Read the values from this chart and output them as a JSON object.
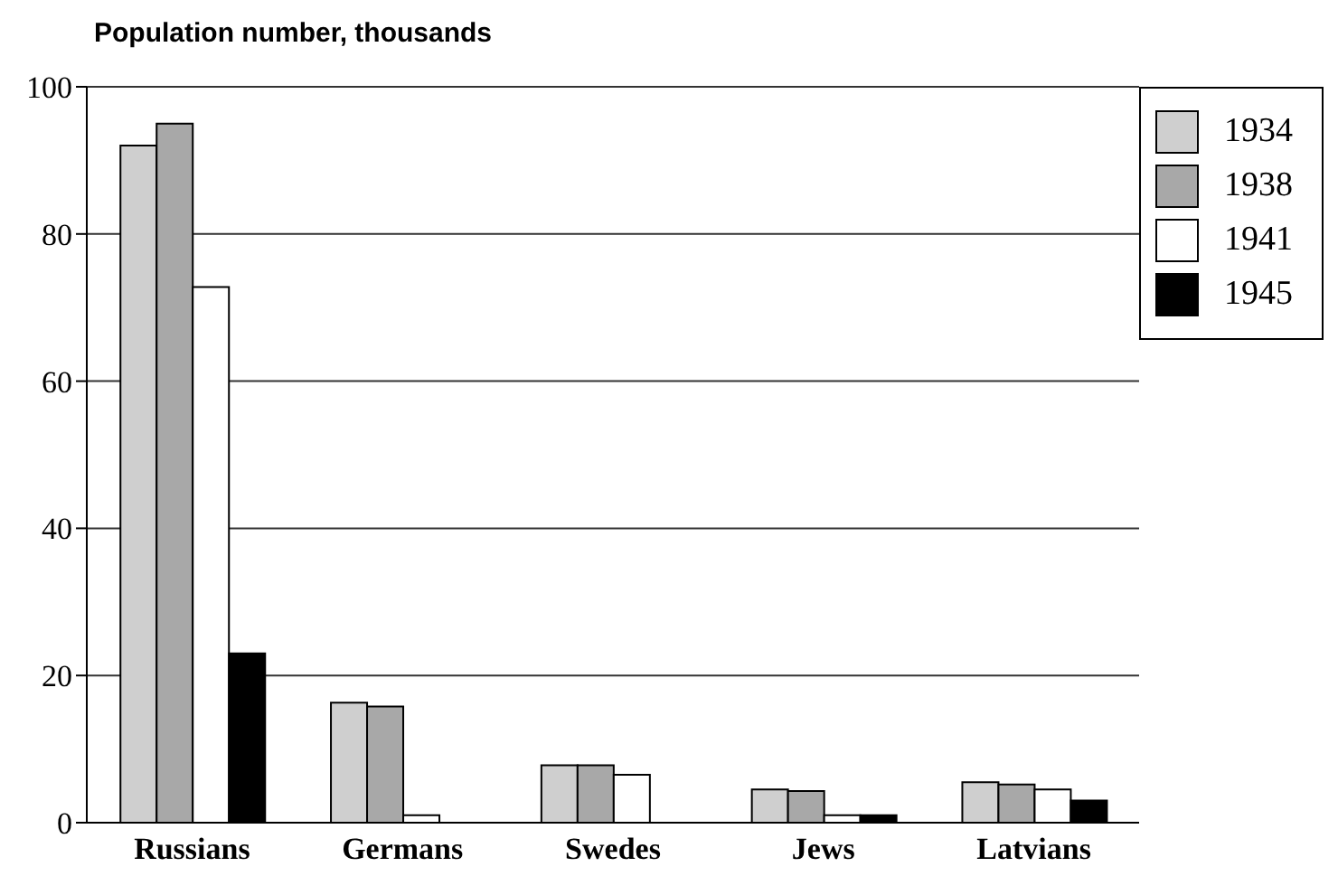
{
  "chart_data": {
    "type": "bar",
    "title": "Population number, thousands",
    "categories": [
      "Russians",
      "Germans",
      "Swedes",
      "Jews",
      "Latvians"
    ],
    "series": [
      {
        "name": "1934",
        "color": "#cfcfcf",
        "values": [
          92,
          16.3,
          7.8,
          4.5,
          5.5
        ]
      },
      {
        "name": "1938",
        "color": "#a8a8a8",
        "values": [
          95,
          15.8,
          7.8,
          4.3,
          5.2
        ]
      },
      {
        "name": "1941",
        "color": "#ffffff",
        "values": [
          72.8,
          1,
          6.5,
          1,
          4.5
        ]
      },
      {
        "name": "1945",
        "color": "#000000",
        "values": [
          23,
          null,
          null,
          1,
          3
        ]
      }
    ],
    "ylim": [
      0,
      100
    ],
    "yticks": [
      0,
      20,
      40,
      60,
      80,
      100
    ],
    "grid": "y",
    "legend": "top right"
  }
}
